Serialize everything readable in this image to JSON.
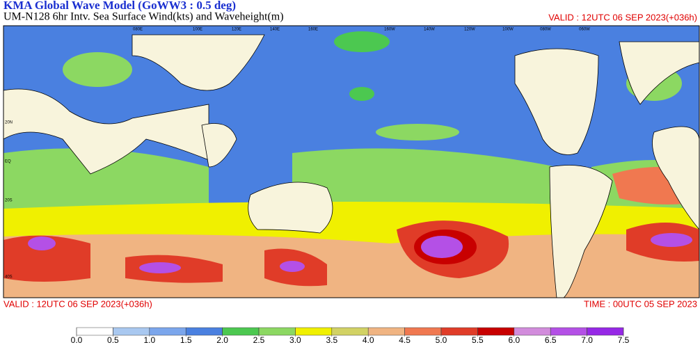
{
  "header": {
    "title": "KMA  Global Wave Model (GoWW3 : 0.5 deg)",
    "subtitle": "UM-N128  6hr Intv. Sea Surface Wind(kts) and Waveheight(m)",
    "valid_top": "VALID : 12UTC 06 SEP 2023(+036h)"
  },
  "map": {
    "lon_labels": [
      "080E",
      "100E",
      "120E",
      "140E",
      "160E",
      "160W",
      "140W",
      "120W",
      "100W",
      "080W",
      "060W"
    ],
    "lat_labels": [
      "20N",
      "EQ",
      "20S",
      "40S"
    ]
  },
  "footer": {
    "valid": "VALID : 12UTC 06 SEP 2023(+036h)",
    "time": "TIME : 00UTC 05 SEP 2023"
  },
  "colorbar": {
    "colors": [
      "#ffffff",
      "#a9c8f0",
      "#7ba6ec",
      "#4a80e0",
      "#4cc850",
      "#8cd862",
      "#f0f000",
      "#d2d264",
      "#f0b482",
      "#f07850",
      "#e03c28",
      "#c80000",
      "#d28cdc",
      "#b450e6",
      "#9628e6"
    ],
    "ticks": [
      {
        "value": 0,
        "label": "0.0"
      },
      0.5,
      {
        "value": 1,
        "label": "1.0"
      },
      1.5,
      {
        "value": 2,
        "label": "2.0"
      },
      2.5,
      {
        "value": 3,
        "label": "3.0"
      },
      3.5,
      {
        "value": 4,
        "label": "4.0"
      },
      4.5,
      {
        "value": 5,
        "label": "5.0"
      },
      5.5,
      {
        "value": 6,
        "label": "6.0"
      },
      6.5,
      {
        "value": 7,
        "label": "7.0"
      },
      7.5
    ]
  }
}
